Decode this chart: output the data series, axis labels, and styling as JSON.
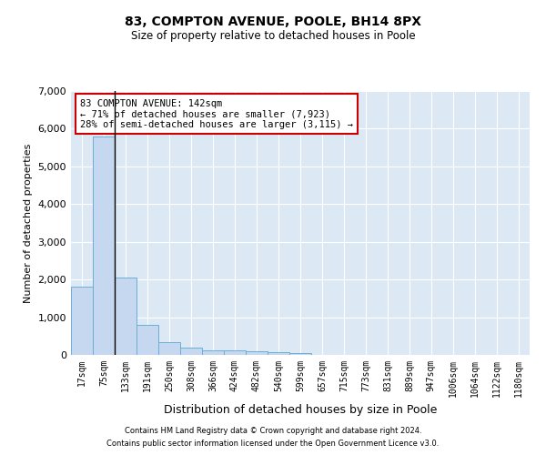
{
  "title": "83, COMPTON AVENUE, POOLE, BH14 8PX",
  "subtitle": "Size of property relative to detached houses in Poole",
  "xlabel": "Distribution of detached houses by size in Poole",
  "ylabel": "Number of detached properties",
  "bar_edges": [
    17,
    75,
    133,
    191,
    250,
    308,
    366,
    424,
    482,
    540,
    599,
    657,
    715,
    773,
    831,
    889,
    947,
    1006,
    1064,
    1122,
    1180
  ],
  "bar_values": [
    1800,
    5800,
    2050,
    800,
    340,
    190,
    130,
    110,
    100,
    70,
    60,
    0,
    0,
    0,
    0,
    0,
    0,
    0,
    0,
    0,
    0
  ],
  "bar_color": "#c5d8ef",
  "bar_edge_color": "#6baed6",
  "property_line_x": 133,
  "ylim": [
    0,
    7000
  ],
  "yticks": [
    0,
    1000,
    2000,
    3000,
    4000,
    5000,
    6000,
    7000
  ],
  "annotation_text": "83 COMPTON AVENUE: 142sqm\n← 71% of detached houses are smaller (7,923)\n28% of semi-detached houses are larger (3,115) →",
  "annotation_box_color": "#cc0000",
  "footer_line1": "Contains HM Land Registry data © Crown copyright and database right 2024.",
  "footer_line2": "Contains public sector information licensed under the Open Government Licence v3.0.",
  "background_color": "#dce9f5",
  "grid_color": "#ffffff",
  "fig_width": 6.0,
  "fig_height": 5.0,
  "dpi": 100
}
